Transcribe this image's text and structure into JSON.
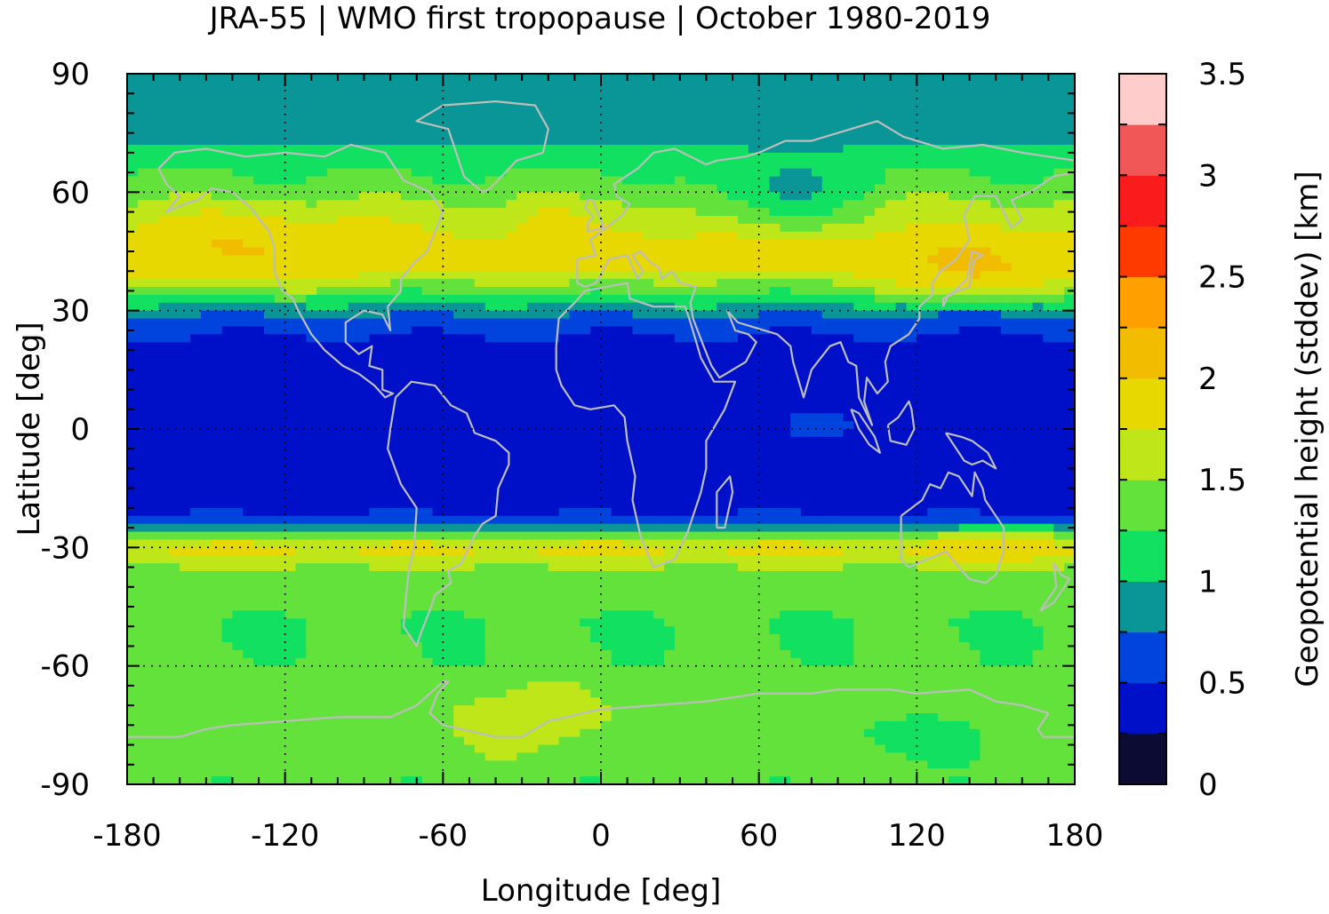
{
  "chart_data": {
    "type": "heatmap",
    "title": "JRA-55 | WMO first tropopause | October 1980-2019",
    "xlabel": "Longitude [deg]",
    "ylabel": "Latitude [deg]",
    "colorbar_label": "Geopotential height (stddev) [km]",
    "xlim": [
      -180,
      180
    ],
    "ylim": [
      -90,
      90
    ],
    "x_ticks": [
      -180,
      -120,
      -60,
      0,
      60,
      120,
      180
    ],
    "y_ticks": [
      -90,
      -60,
      -30,
      0,
      30,
      60,
      90
    ],
    "x_tick_labels": [
      "-180",
      "-120",
      "-60",
      "0",
      "60",
      "120",
      "180"
    ],
    "y_tick_labels": [
      "-90",
      "-60",
      "-30",
      "0",
      "30",
      "60",
      "90"
    ],
    "grid": true,
    "colorbar": {
      "range": [
        0,
        3.5
      ],
      "step": 0.25,
      "tick_values": [
        0,
        0.5,
        1,
        1.5,
        2,
        2.5,
        3,
        3.5
      ],
      "tick_labels": [
        "0",
        "0.5",
        "1",
        "1.5",
        "2",
        "2.5",
        "3",
        "3.5"
      ],
      "colors": [
        "#0b0b33",
        "#0010c8",
        "#0044dd",
        "#0a9696",
        "#12e060",
        "#64e23c",
        "#bfe618",
        "#e6d800",
        "#f2bc00",
        "#ffa000",
        "#ff3a00",
        "#fa1c1c",
        "#f25757",
        "#ffcccc"
      ]
    },
    "latitude_profile": {
      "lat": [
        90,
        80,
        72,
        68,
        62,
        58,
        52,
        46,
        40,
        35,
        31,
        28,
        24,
        20,
        10,
        0,
        -10,
        -20,
        -24,
        -27,
        -30,
        -33,
        -36,
        -42,
        -50,
        -60,
        -70,
        -80,
        -90
      ],
      "stddev_km": [
        0.9,
        0.9,
        0.95,
        1.2,
        1.3,
        1.5,
        1.7,
        1.85,
        1.75,
        1.3,
        0.95,
        0.7,
        0.5,
        0.4,
        0.35,
        0.35,
        0.35,
        0.4,
        0.7,
        1.4,
        1.85,
        1.65,
        1.45,
        1.3,
        1.25,
        1.3,
        1.45,
        1.4,
        1.3
      ]
    },
    "regional_features": [
      {
        "lon": [
          -180,
          -80
        ],
        "lat": [
          35,
          55
        ],
        "stddev_km": 2.0
      },
      {
        "lon": [
          100,
          180
        ],
        "lat": [
          32,
          50
        ],
        "stddev_km": 2.05
      },
      {
        "lon": [
          -40,
          0
        ],
        "lat": [
          38,
          58
        ],
        "stddev_km": 1.8
      },
      {
        "lon": [
          40,
          100
        ],
        "lat": [
          50,
          72
        ],
        "stddev_km": 0.95
      },
      {
        "lon": [
          60,
          100
        ],
        "lat": [
          -4,
          6
        ],
        "stddev_km": 0.55
      },
      {
        "lon": [
          -60,
          10
        ],
        "lat": [
          -85,
          -62
        ],
        "stddev_km": 1.6
      },
      {
        "lon": [
          80,
          160
        ],
        "lat": [
          -85,
          -70
        ],
        "stddev_km": 1.15
      },
      {
        "lon": [
          130,
          180
        ],
        "lat": [
          -35,
          -25
        ],
        "stddev_km": 1.9
      }
    ]
  }
}
